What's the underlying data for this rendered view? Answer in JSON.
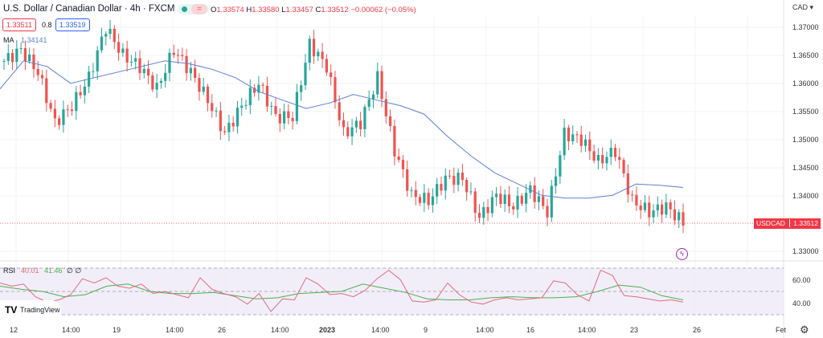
{
  "header": {
    "title": "U.S. Dollar / Canadian Dollar · 4h · FXCM",
    "ohlc": {
      "o_label": "O",
      "o": "1.33574",
      "h_label": "H",
      "h": "1.33580",
      "l_label": "L",
      "l": "1.33457",
      "c_label": "C",
      "c": "1.33512",
      "change": "−0.00062 (−0.05%)"
    },
    "bid": "1.33511",
    "spread": "0.8",
    "ask": "1.33519",
    "ma_label": "MA",
    "ma_value": "1.34141",
    "currency": "CAD",
    "status_colors": {
      "market": "#26a69a",
      "flag": "#f7525f"
    }
  },
  "price_axis": [
    "1.37000",
    "1.36500",
    "1.36000",
    "1.35500",
    "1.35000",
    "1.34500",
    "1.34000",
    "1.33000"
  ],
  "last_price": {
    "symbol": "USDCAD",
    "value": "1.33512",
    "color": "#f23645"
  },
  "rsi": {
    "label": "RSI",
    "value": "40.01",
    "ma_value": "41.46",
    "extra1": "∅",
    "extra2": "∅",
    "levels": [
      "60.00",
      "40.00"
    ]
  },
  "time_axis": [
    "12",
    "14:00",
    "19",
    "14:00",
    "26",
    "14:00",
    "2023",
    "14:00",
    "9",
    "14:00",
    "16",
    "14:00",
    "23",
    "26",
    "Fet"
  ],
  "logo": "TradingView",
  "colors": {
    "up": "#26a69a",
    "down": "#ef5350",
    "ma": "#5b7fd6",
    "rsi": "#e06b7c",
    "rsi_ma": "#4caf50",
    "rsi_bg": "#ede7f6"
  },
  "chart_data": {
    "type": "candlestick",
    "ylim": [
      1.33,
      1.37
    ],
    "close_path": [
      1.364,
      1.366,
      1.362,
      1.353,
      1.356,
      1.361,
      1.37,
      1.365,
      1.363,
      1.359,
      1.366,
      1.362,
      1.357,
      1.351,
      1.356,
      1.36,
      1.354,
      1.354,
      1.367,
      1.363,
      1.351,
      1.353,
      1.361,
      1.348,
      1.34,
      1.339,
      1.343,
      1.343,
      1.336,
      1.34,
      1.338,
      1.341,
      1.337,
      1.351,
      1.35,
      1.346,
      1.348,
      1.339,
      1.337,
      1.338,
      1.3351
    ],
    "ma_path": [
      1.359,
      1.364,
      1.363,
      1.36,
      1.361,
      1.362,
      1.363,
      1.364,
      1.3635,
      1.3625,
      1.361,
      1.3585,
      1.357,
      1.3555,
      1.3565,
      1.358,
      1.357,
      1.356,
      1.3545,
      1.3505,
      1.347,
      1.344,
      1.342,
      1.34,
      1.3395,
      1.3395,
      1.34,
      1.342,
      1.3418,
      1.3414
    ],
    "rsi_path": [
      58,
      55,
      57,
      45,
      40,
      42,
      47,
      62,
      58,
      63,
      55,
      53,
      57,
      48,
      50,
      47,
      44,
      63,
      52,
      48,
      45,
      38,
      48,
      31,
      43,
      42,
      63,
      57,
      47,
      48,
      45,
      51,
      62,
      70,
      61,
      41,
      40,
      42,
      58,
      47,
      40,
      38,
      42,
      44,
      42,
      43,
      44,
      60,
      58,
      47,
      41,
      70,
      65,
      46,
      45,
      43,
      41,
      42,
      40
    ],
    "rsi_ma_path": [
      55,
      52,
      50,
      45,
      47,
      55,
      57,
      50,
      48,
      48,
      49,
      46,
      43,
      44,
      48,
      49,
      50,
      57,
      53,
      49,
      43,
      42,
      42,
      44,
      45,
      44,
      44,
      45,
      50,
      56,
      54,
      46,
      42
    ],
    "rsi_ylim": [
      28,
      72
    ]
  }
}
